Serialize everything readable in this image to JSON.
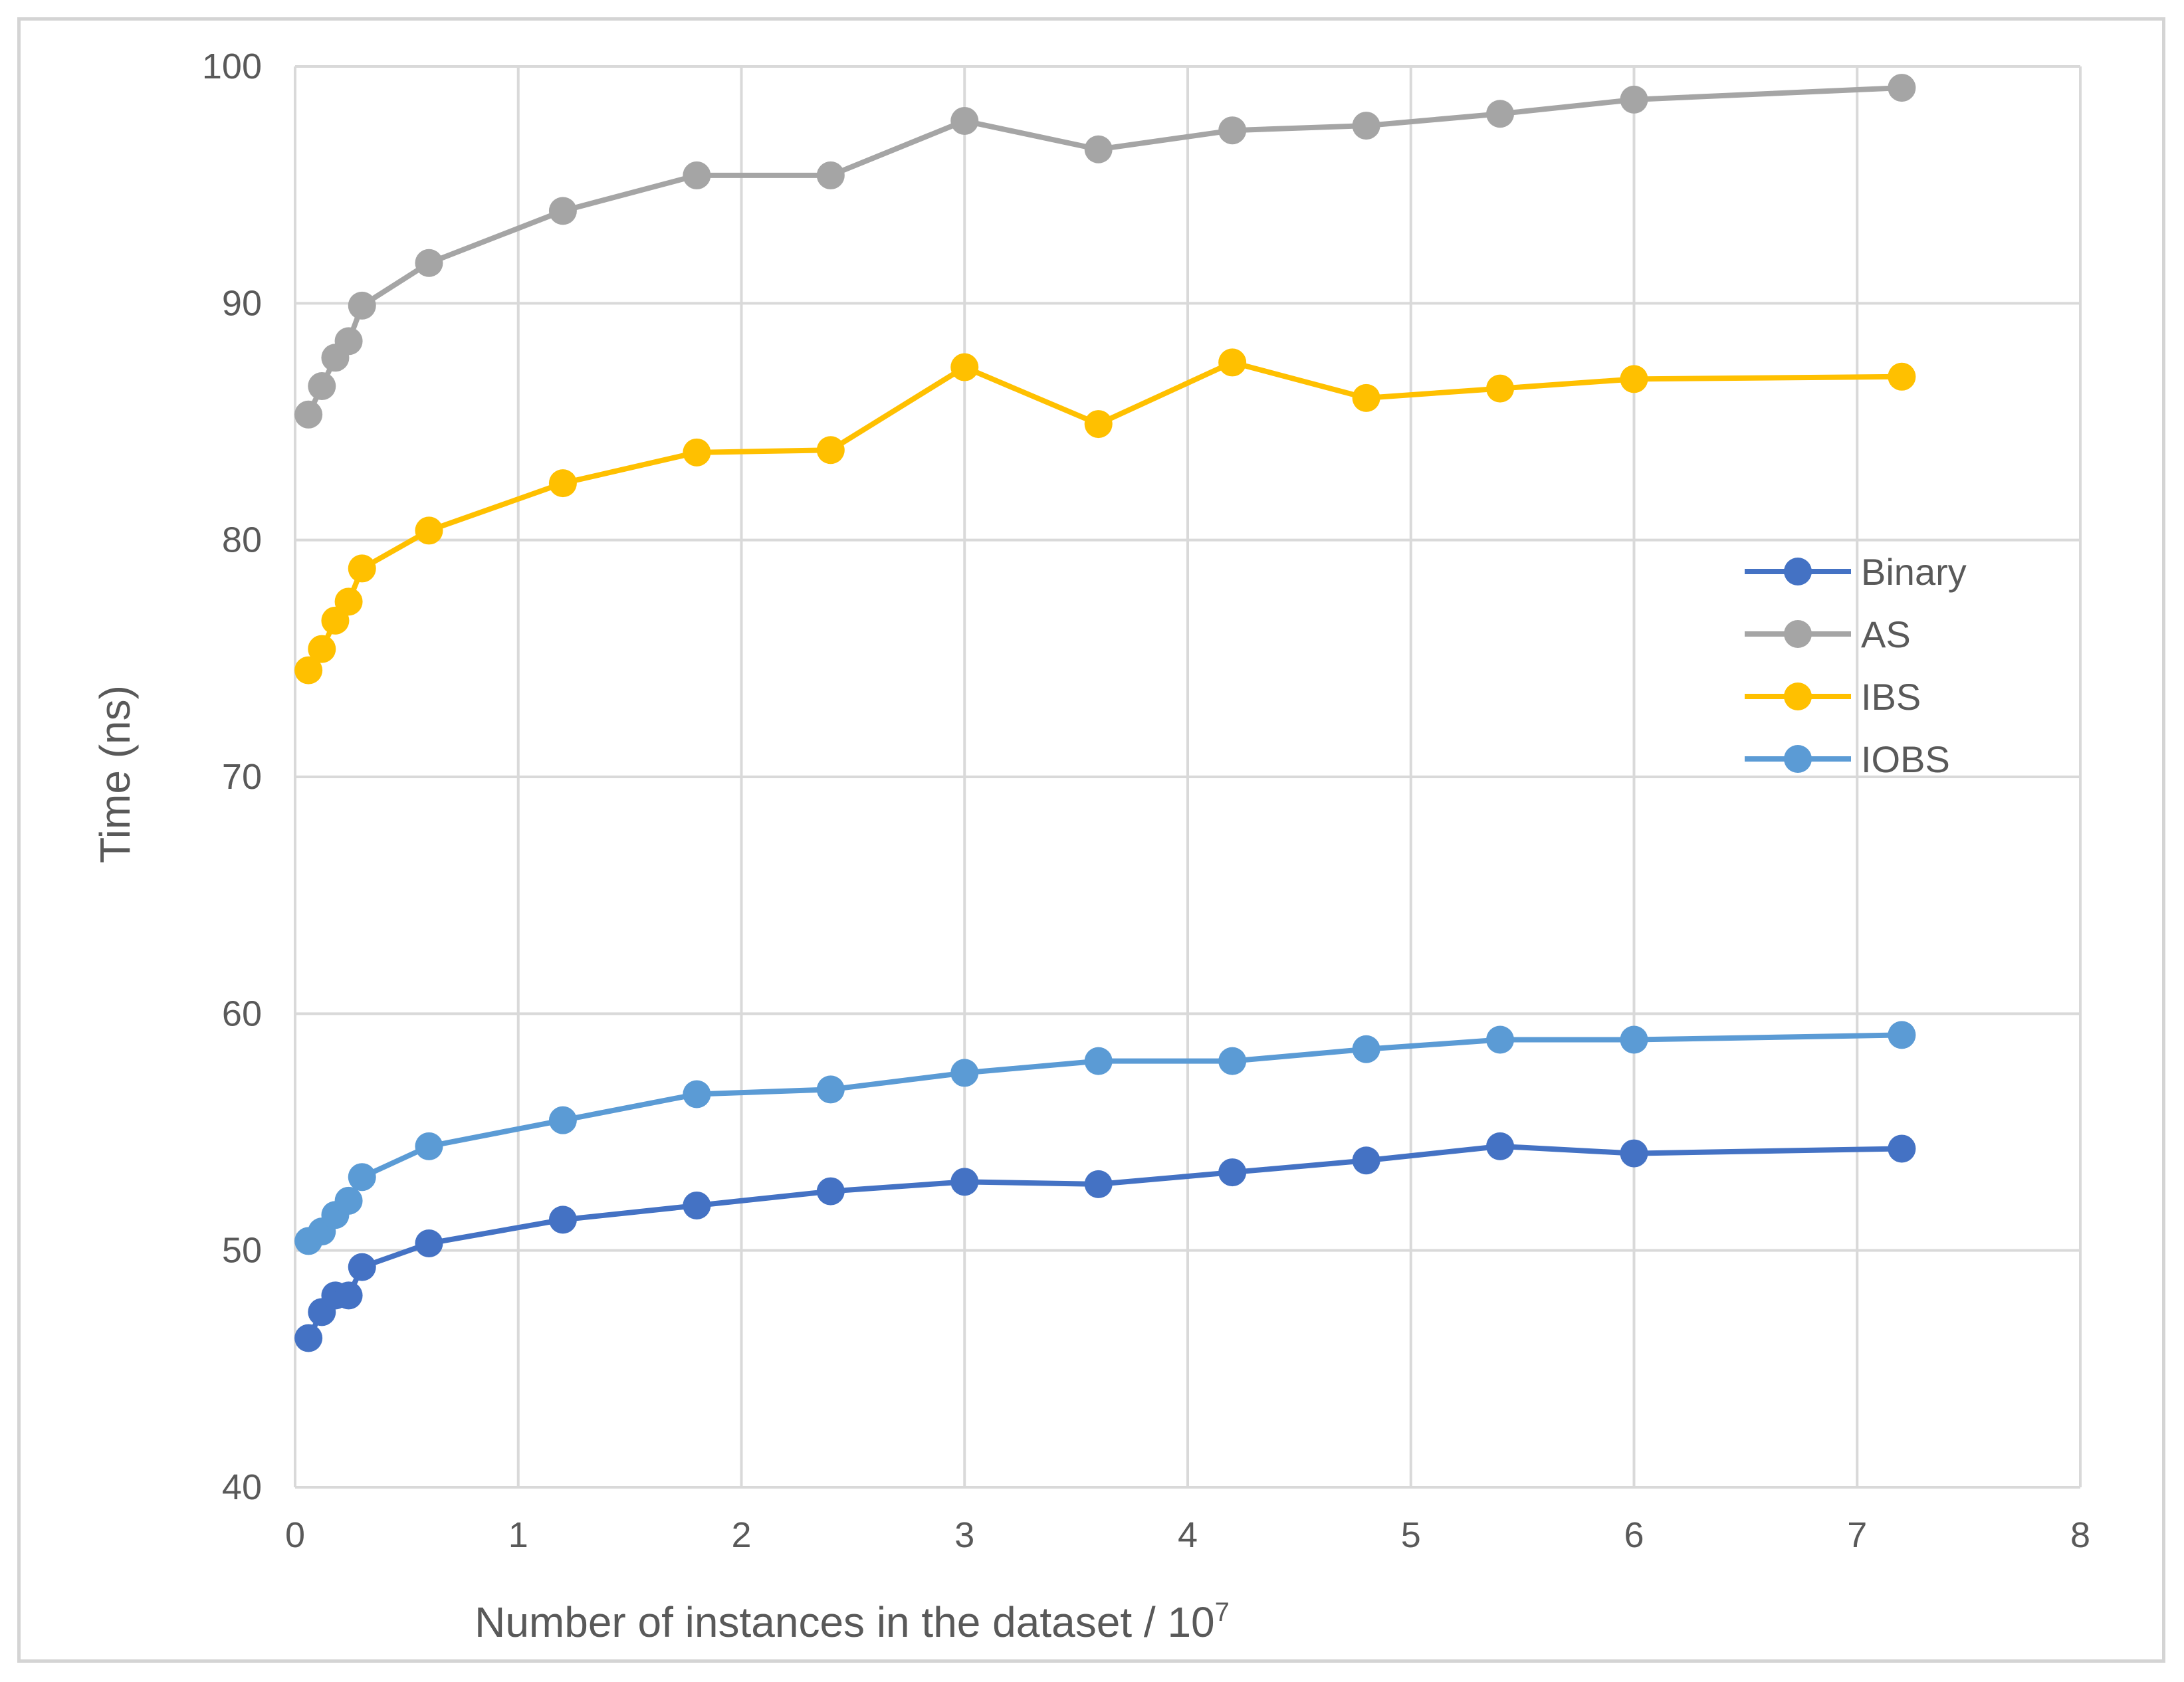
{
  "chart_data": {
    "type": "line",
    "title": "",
    "xlabel": "Number of instances in the dataset / 10",
    "xlabel_superscript": "7",
    "ylabel": "Time (ns)",
    "xlim": [
      0,
      8
    ],
    "ylim": [
      40,
      100
    ],
    "xticks": [
      0,
      1,
      2,
      3,
      4,
      5,
      6,
      7,
      8
    ],
    "yticks": [
      40,
      50,
      60,
      70,
      80,
      90,
      100
    ],
    "grid": true,
    "legend_position": "right-middle",
    "series": [
      {
        "name": "Binary",
        "color": "#4472c4",
        "points": [
          [
            0.06,
            46.3
          ],
          [
            0.12,
            47.4
          ],
          [
            0.18,
            48.1
          ],
          [
            0.24,
            48.1
          ],
          [
            0.3,
            49.3
          ],
          [
            0.6,
            50.3
          ],
          [
            1.2,
            51.3
          ],
          [
            1.8,
            51.9
          ],
          [
            2.4,
            52.5
          ],
          [
            3.0,
            52.9
          ],
          [
            3.6,
            52.8
          ],
          [
            4.2,
            53.3
          ],
          [
            4.8,
            53.8
          ],
          [
            5.4,
            54.4
          ],
          [
            6.0,
            54.1
          ],
          [
            7.2,
            54.3
          ]
        ]
      },
      {
        "name": "AS",
        "color": "#a5a5a5",
        "points": [
          [
            0.06,
            85.3
          ],
          [
            0.12,
            86.5
          ],
          [
            0.18,
            87.7
          ],
          [
            0.24,
            88.4
          ],
          [
            0.3,
            89.9
          ],
          [
            0.6,
            91.7
          ],
          [
            1.2,
            93.9
          ],
          [
            1.8,
            95.4
          ],
          [
            2.4,
            95.4
          ],
          [
            3.0,
            97.7
          ],
          [
            3.6,
            96.5
          ],
          [
            4.2,
            97.3
          ],
          [
            4.8,
            97.5
          ],
          [
            5.4,
            98.0
          ],
          [
            6.0,
            98.6
          ],
          [
            7.2,
            99.1
          ]
        ]
      },
      {
        "name": "IBS",
        "color": "#ffc000",
        "points": [
          [
            0.06,
            74.5
          ],
          [
            0.12,
            75.4
          ],
          [
            0.18,
            76.6
          ],
          [
            0.24,
            77.4
          ],
          [
            0.3,
            78.8
          ],
          [
            0.6,
            80.4
          ],
          [
            1.2,
            82.4
          ],
          [
            1.8,
            83.7
          ],
          [
            2.4,
            83.8
          ],
          [
            3.0,
            87.3
          ],
          [
            3.6,
            84.9
          ],
          [
            4.2,
            87.5
          ],
          [
            4.8,
            86.0
          ],
          [
            5.4,
            86.4
          ],
          [
            6.0,
            86.8
          ],
          [
            7.2,
            86.9
          ]
        ]
      },
      {
        "name": "IOBS",
        "color": "#5b9bd5",
        "points": [
          [
            0.06,
            50.4
          ],
          [
            0.12,
            50.8
          ],
          [
            0.18,
            51.5
          ],
          [
            0.24,
            52.1
          ],
          [
            0.3,
            53.1
          ],
          [
            0.6,
            54.4
          ],
          [
            1.2,
            55.5
          ],
          [
            1.8,
            56.6
          ],
          [
            2.4,
            56.8
          ],
          [
            3.0,
            57.5
          ],
          [
            3.6,
            58.0
          ],
          [
            4.2,
            58.0
          ],
          [
            4.8,
            58.5
          ],
          [
            5.4,
            58.9
          ],
          [
            6.0,
            58.9
          ],
          [
            7.2,
            59.1
          ]
        ]
      }
    ]
  }
}
